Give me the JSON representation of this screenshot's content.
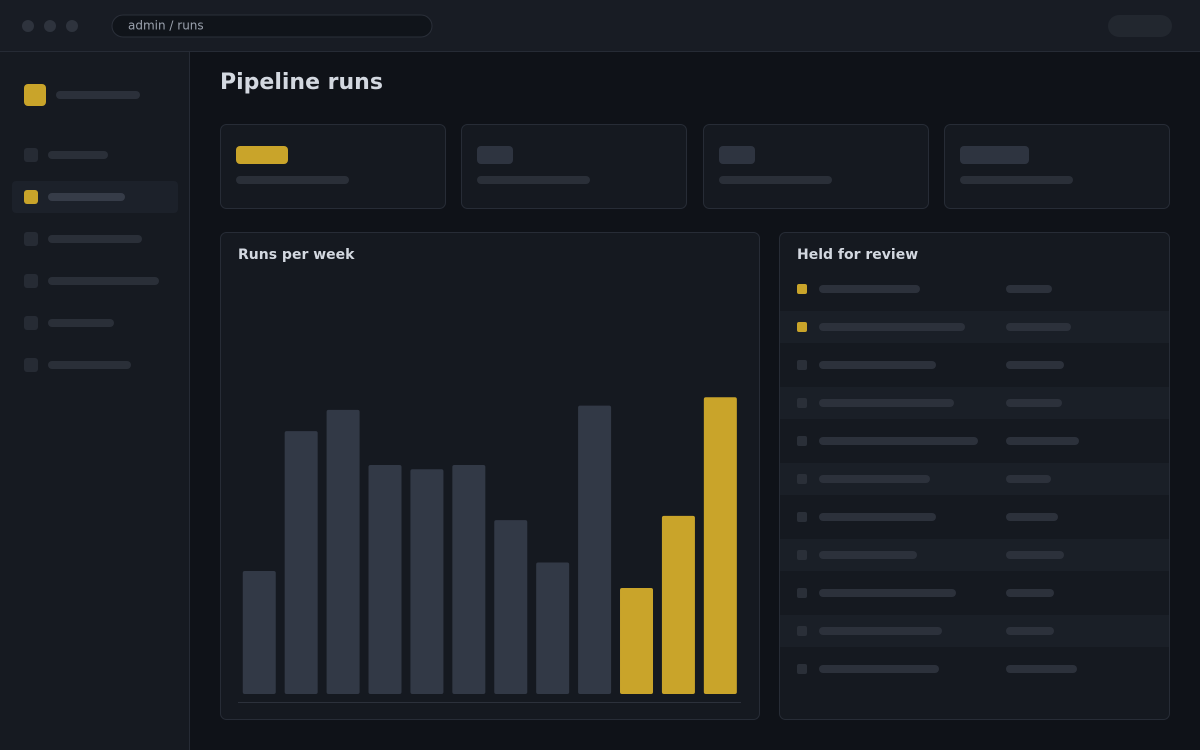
{
  "address": "admin / runs",
  "page_title": "Pipeline runs",
  "review_title": "Held for review",
  "chart_data": {
    "type": "bar",
    "title": "Runs per week",
    "values": [
      29,
      62,
      67,
      54,
      53,
      54,
      41,
      31,
      68,
      25,
      42,
      70
    ],
    "colors": [
      "#323946",
      "#323946",
      "#323946",
      "#323946",
      "#323946",
      "#323946",
      "#323946",
      "#323946",
      "#323946",
      "#c9a42a",
      "#c9a42a",
      "#c9a42a"
    ],
    "ylim": [
      0,
      100
    ]
  }
}
